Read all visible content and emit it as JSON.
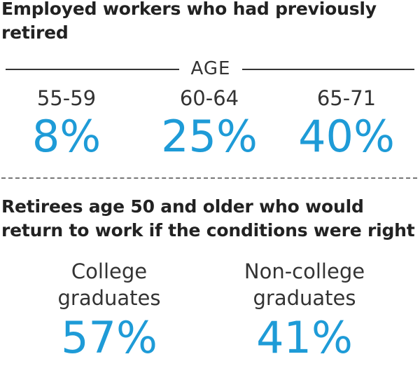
{
  "chart_data": [
    {
      "type": "table",
      "title": "Employed workers who had previously retired",
      "group_label": "AGE",
      "categories": [
        "55-59",
        "60-64",
        "65-71"
      ],
      "values": [
        "8%",
        "25%",
        "40%"
      ]
    },
    {
      "type": "table",
      "title": "Retirees age 50 and older who would return to work if the conditions were right",
      "categories": [
        "College graduates",
        "Non-college graduates"
      ],
      "values": [
        "57%",
        "41%"
      ]
    }
  ],
  "colors": {
    "accent": "#1e9bd7",
    "text": "#222222"
  }
}
